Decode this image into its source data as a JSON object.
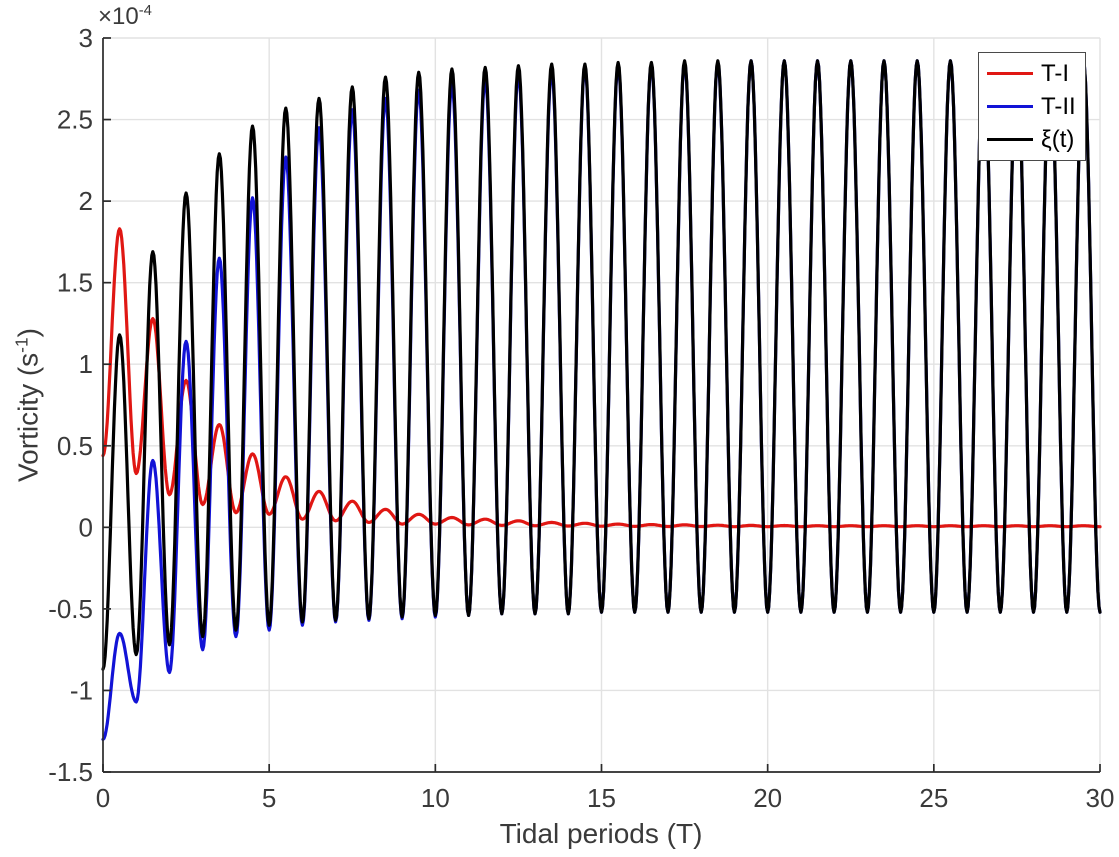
{
  "chart_data": {
    "type": "line",
    "title": "",
    "xlabel": "Tidal periods (T)",
    "ylabel": "Vorticity (s⁻¹)",
    "ylabel_parts": {
      "base": "Vorticity (s",
      "sup": "-1",
      "close": ")"
    },
    "offset_label": {
      "base": "×10",
      "exponent": "-4",
      "full": "×10⁻⁴"
    },
    "y_unit_scale": "1e-4",
    "xlim": [
      0,
      30
    ],
    "ylim": [
      -1.5,
      3
    ],
    "x_ticks": [
      0,
      5,
      10,
      15,
      20,
      25,
      30
    ],
    "x_tick_labels": [
      "0",
      "5",
      "10",
      "15",
      "20",
      "25",
      "30"
    ],
    "y_ticks": [
      -1.5,
      -1,
      -0.5,
      0,
      0.5,
      1,
      1.5,
      2,
      2.5,
      3
    ],
    "y_tick_labels": [
      "-1.5",
      "-1",
      "-0.5",
      "0",
      "0.5",
      "1",
      "1.5",
      "2",
      "2.5",
      "3"
    ],
    "grid": true,
    "legend": {
      "position": "northeast"
    },
    "series_note": "values in units of 1e-4 s^-1; curves reconstructed from extrema [t, value] read off the figure; oscillation period = 1 tidal period",
    "series": [
      {
        "name": "T-I",
        "color": "#e01713",
        "style": "solid",
        "behavior": "decaying oscillation toward 0",
        "extrema": [
          [
            0,
            0.44
          ],
          [
            0.5,
            1.83
          ],
          [
            1,
            0.33
          ],
          [
            1.5,
            1.28
          ],
          [
            2,
            0.2
          ],
          [
            2.5,
            0.9
          ],
          [
            3,
            0.14
          ],
          [
            3.5,
            0.63
          ],
          [
            4,
            0.09
          ],
          [
            4.5,
            0.45
          ],
          [
            5,
            0.08
          ],
          [
            5.5,
            0.31
          ],
          [
            6,
            0.05
          ],
          [
            6.5,
            0.22
          ],
          [
            7,
            0.04
          ],
          [
            7.5,
            0.16
          ],
          [
            8,
            0.03
          ],
          [
            8.5,
            0.11
          ],
          [
            9,
            0.02
          ],
          [
            9.5,
            0.08
          ],
          [
            10,
            0.02
          ],
          [
            10.5,
            0.06
          ],
          [
            11,
            0.015
          ],
          [
            11.5,
            0.05
          ],
          [
            12,
            0.012
          ],
          [
            12.5,
            0.04
          ],
          [
            13,
            0.01
          ],
          [
            13.5,
            0.03
          ],
          [
            14,
            0.008
          ],
          [
            14.5,
            0.025
          ],
          [
            15,
            0.007
          ],
          [
            15.5,
            0.02
          ],
          [
            16,
            0.006
          ],
          [
            16.5,
            0.017
          ],
          [
            17,
            0.005
          ],
          [
            17.5,
            0.015
          ],
          [
            18,
            0.005
          ],
          [
            18.5,
            0.013
          ],
          [
            19,
            0.004
          ],
          [
            19.5,
            0.012
          ],
          [
            20,
            0.004
          ],
          [
            20.5,
            0.011
          ],
          [
            21,
            0.004
          ],
          [
            21.5,
            0.01
          ],
          [
            22,
            0.004
          ],
          [
            22.5,
            0.01
          ],
          [
            23,
            0.004
          ],
          [
            23.5,
            0.01
          ],
          [
            24,
            0.004
          ],
          [
            24.5,
            0.01
          ],
          [
            25,
            0.004
          ],
          [
            25.5,
            0.01
          ],
          [
            26,
            0.004
          ],
          [
            26.5,
            0.01
          ],
          [
            27,
            0.004
          ],
          [
            27.5,
            0.01
          ],
          [
            28,
            0.004
          ],
          [
            28.5,
            0.01
          ],
          [
            29,
            0.004
          ],
          [
            29.5,
            0.01
          ],
          [
            30,
            0.004
          ]
        ]
      },
      {
        "name": "T-II",
        "color": "#1213d6",
        "style": "solid",
        "behavior": "starts at -1.30, grows and converges to ξ(t) by t≈15",
        "extrema": [
          [
            0,
            -1.3
          ],
          [
            0.5,
            -0.65
          ],
          [
            1,
            -1.07
          ],
          [
            1.5,
            0.41
          ],
          [
            2,
            -0.89
          ],
          [
            2.5,
            1.14
          ],
          [
            3,
            -0.75
          ],
          [
            3.5,
            1.65
          ],
          [
            4,
            -0.67
          ],
          [
            4.5,
            2.02
          ],
          [
            5,
            -0.63
          ],
          [
            5.5,
            2.27
          ],
          [
            6,
            -0.6
          ],
          [
            6.5,
            2.45
          ],
          [
            7,
            -0.58
          ],
          [
            7.5,
            2.56
          ],
          [
            8,
            -0.57
          ],
          [
            8.5,
            2.63
          ],
          [
            9,
            -0.56
          ],
          [
            9.5,
            2.68
          ],
          [
            10,
            -0.55
          ],
          [
            10.5,
            2.72
          ],
          [
            11,
            -0.54
          ],
          [
            11.5,
            2.75
          ],
          [
            12,
            -0.53
          ],
          [
            12.5,
            2.78
          ],
          [
            13,
            -0.53
          ],
          [
            13.5,
            2.8
          ],
          [
            14,
            -0.53
          ],
          [
            14.5,
            2.82
          ],
          [
            15,
            -0.52
          ],
          [
            15.5,
            2.83
          ],
          [
            16,
            -0.52
          ],
          [
            16.5,
            2.84
          ],
          [
            17,
            -0.52
          ],
          [
            17.5,
            2.85
          ],
          [
            18,
            -0.52
          ],
          [
            18.5,
            2.85
          ],
          [
            19,
            -0.52
          ],
          [
            19.5,
            2.86
          ],
          [
            20,
            -0.52
          ],
          [
            20.5,
            2.86
          ],
          [
            21,
            -0.52
          ],
          [
            21.5,
            2.86
          ],
          [
            22,
            -0.52
          ],
          [
            22.5,
            2.86
          ],
          [
            23,
            -0.52
          ],
          [
            23.5,
            2.86
          ],
          [
            24,
            -0.52
          ],
          [
            24.5,
            2.86
          ],
          [
            25,
            -0.52
          ],
          [
            25.5,
            2.86
          ],
          [
            26,
            -0.52
          ],
          [
            26.5,
            2.86
          ],
          [
            27,
            -0.52
          ],
          [
            27.5,
            2.86
          ],
          [
            28,
            -0.52
          ],
          [
            28.5,
            2.86
          ],
          [
            29,
            -0.52
          ],
          [
            29.5,
            2.86
          ],
          [
            30,
            -0.52
          ]
        ]
      },
      {
        "name": "ξ(t)",
        "color": "#000000",
        "style": "solid",
        "behavior": "spin-up to steady oscillation between -0.52 and 2.86",
        "extrema": [
          [
            0,
            -0.87
          ],
          [
            0.5,
            1.18
          ],
          [
            1,
            -0.78
          ],
          [
            1.5,
            1.69
          ],
          [
            2,
            -0.72
          ],
          [
            2.5,
            2.05
          ],
          [
            3,
            -0.67
          ],
          [
            3.5,
            2.29
          ],
          [
            4,
            -0.63
          ],
          [
            4.5,
            2.46
          ],
          [
            5,
            -0.6
          ],
          [
            5.5,
            2.57
          ],
          [
            6,
            -0.58
          ],
          [
            6.5,
            2.63
          ],
          [
            7,
            -0.57
          ],
          [
            7.5,
            2.7
          ],
          [
            8,
            -0.56
          ],
          [
            8.5,
            2.76
          ],
          [
            9,
            -0.55
          ],
          [
            9.5,
            2.79
          ],
          [
            10,
            -0.54
          ],
          [
            10.5,
            2.81
          ],
          [
            11,
            -0.54
          ],
          [
            11.5,
            2.82
          ],
          [
            12,
            -0.53
          ],
          [
            12.5,
            2.83
          ],
          [
            13,
            -0.53
          ],
          [
            13.5,
            2.84
          ],
          [
            14,
            -0.53
          ],
          [
            14.5,
            2.84
          ],
          [
            15,
            -0.52
          ],
          [
            15.5,
            2.85
          ],
          [
            16,
            -0.52
          ],
          [
            16.5,
            2.85
          ],
          [
            17,
            -0.52
          ],
          [
            17.5,
            2.86
          ],
          [
            18,
            -0.52
          ],
          [
            18.5,
            2.86
          ],
          [
            19,
            -0.52
          ],
          [
            19.5,
            2.86
          ],
          [
            20,
            -0.52
          ],
          [
            20.5,
            2.86
          ],
          [
            21,
            -0.52
          ],
          [
            21.5,
            2.86
          ],
          [
            22,
            -0.52
          ],
          [
            22.5,
            2.86
          ],
          [
            23,
            -0.52
          ],
          [
            23.5,
            2.86
          ],
          [
            24,
            -0.52
          ],
          [
            24.5,
            2.86
          ],
          [
            25,
            -0.52
          ],
          [
            25.5,
            2.86
          ],
          [
            26,
            -0.52
          ],
          [
            26.5,
            2.86
          ],
          [
            27,
            -0.52
          ],
          [
            27.5,
            2.86
          ],
          [
            28,
            -0.52
          ],
          [
            28.5,
            2.86
          ],
          [
            29,
            -0.52
          ],
          [
            29.5,
            2.86
          ],
          [
            30,
            -0.52
          ]
        ]
      }
    ]
  }
}
